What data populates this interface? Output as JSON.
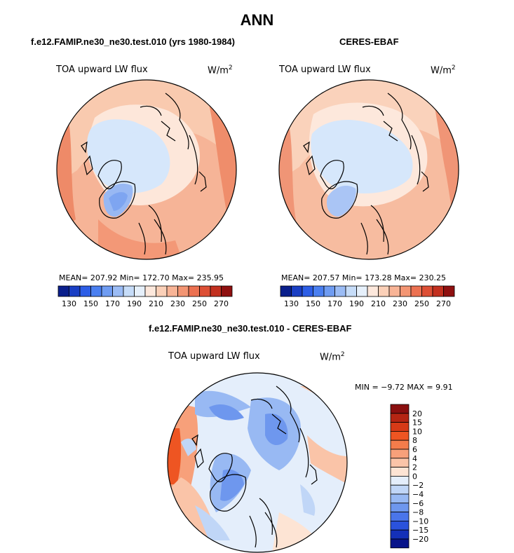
{
  "main_title": "ANN",
  "panel_left": {
    "title": "f.e12.FAMIP.ne30_ne30.test.010 (yrs 1980-1984)",
    "variable": "TOA upward LW flux",
    "units_base": "W/m",
    "units_exp": "2",
    "stats": "MEAN= 207.92   Min= 172.70   Max= 235.95"
  },
  "panel_right": {
    "title": "CERES-EBAF",
    "variable": "TOA upward LW flux",
    "units_base": "W/m",
    "units_exp": "2",
    "stats": "MEAN= 207.57   Min= 173.28   Max= 230.25"
  },
  "panel_diff": {
    "title": "f.e12.FAMIP.ne30_ne30.test.010 - CERES-EBAF",
    "variable": "TOA upward LW flux",
    "units_base": "W/m",
    "units_exp": "2",
    "stats": "MIN =   −9.72  MAX =    9.91"
  },
  "colorbar_abs": {
    "colors": [
      "#0a1f8c",
      "#1a3fc4",
      "#2d5ee6",
      "#4a7ff0",
      "#6f9cf2",
      "#9bbcf5",
      "#c6dcf8",
      "#e6f0fb",
      "#fde8dc",
      "#fbd0b8",
      "#f8b496",
      "#f39573",
      "#ec7151",
      "#dd4f35",
      "#c2301f",
      "#8f1010"
    ],
    "labels": [
      "130",
      "150",
      "170",
      "190",
      "210",
      "230",
      "250",
      "270"
    ]
  },
  "colorbar_diff": {
    "colors": [
      "#8a0f0f",
      "#b52513",
      "#d63a17",
      "#ee5522",
      "#f47c4b",
      "#f7a07a",
      "#fac4a8",
      "#fde4d4",
      "#e4eefb",
      "#c0d6f7",
      "#98b9f3",
      "#6e97ee",
      "#4a75ea",
      "#2a52dc",
      "#1430b8",
      "#08148a"
    ],
    "labels": [
      "20",
      "15",
      "10",
      "8",
      "6",
      "4",
      "2",
      "0",
      "−2",
      "−4",
      "−6",
      "−8",
      "−10",
      "−15",
      "−20"
    ]
  }
}
